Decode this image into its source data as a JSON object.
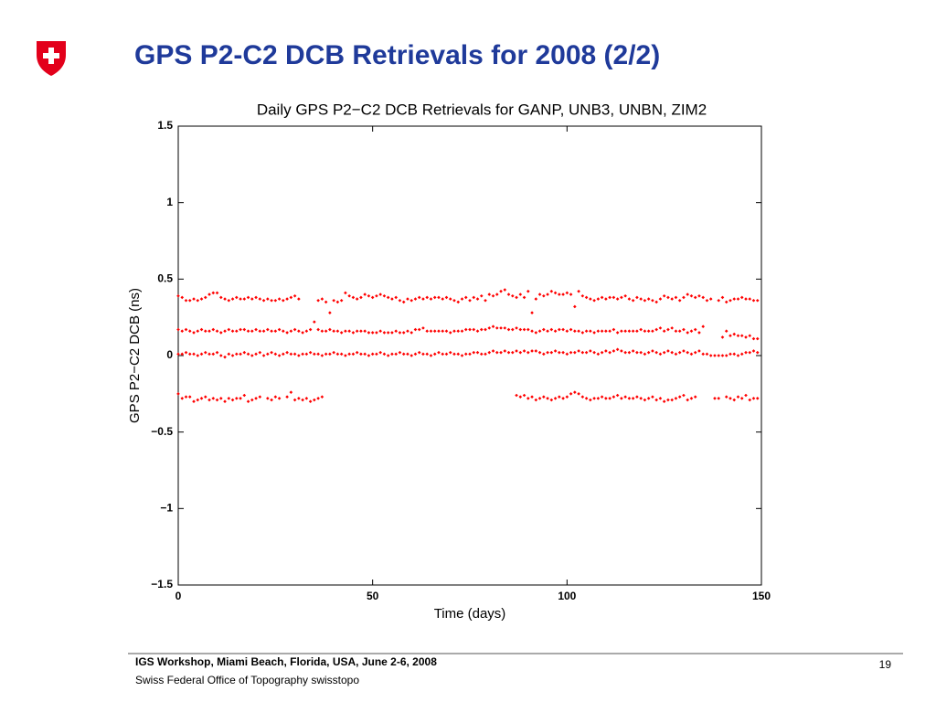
{
  "slide": {
    "title": "GPS P2-C2 DCB Retrievals for 2008 (2/2)",
    "footer_line1": "IGS Workshop, Miami Beach, Florida, USA, June 2-6, 2008",
    "footer_line2": "Swiss Federal Office of Topography swisstopo",
    "page_number": "19"
  },
  "chart_data": {
    "type": "scatter",
    "title": "Daily GPS P2−C2 DCB Retrievals for GANP, UNB3, UNBN, ZIM2",
    "xlabel": "Time (days)",
    "ylabel": "GPS P2−C2 DCB (ns)",
    "xlim": [
      0,
      150
    ],
    "xticks": [
      0,
      50,
      100,
      150
    ],
    "ylim": [
      -1.5,
      1.5
    ],
    "yticks": [
      {
        "value": -1.5,
        "label": "−1.5"
      },
      {
        "value": -1,
        "label": "−1"
      },
      {
        "value": -0.5,
        "label": "−0.5"
      },
      0,
      0.5,
      1,
      1.5
    ],
    "grid": false,
    "x": [
      0,
      1,
      2,
      3,
      4,
      5,
      6,
      7,
      8,
      9,
      10,
      11,
      12,
      13,
      14,
      15,
      16,
      17,
      18,
      19,
      20,
      21,
      22,
      23,
      24,
      25,
      26,
      27,
      28,
      29,
      30,
      31,
      32,
      33,
      34,
      35,
      36,
      37,
      38,
      39,
      40,
      41,
      42,
      43,
      44,
      45,
      46,
      47,
      48,
      49,
      50,
      51,
      52,
      53,
      54,
      55,
      56,
      57,
      58,
      59,
      60,
      61,
      62,
      63,
      64,
      65,
      66,
      67,
      68,
      69,
      70,
      71,
      72,
      73,
      74,
      75,
      76,
      77,
      78,
      79,
      80,
      81,
      82,
      83,
      84,
      85,
      86,
      87,
      88,
      89,
      90,
      91,
      92,
      93,
      94,
      95,
      96,
      97,
      98,
      99,
      100,
      101,
      102,
      103,
      104,
      105,
      106,
      107,
      108,
      109,
      110,
      111,
      112,
      113,
      114,
      115,
      116,
      117,
      118,
      119,
      120,
      121,
      122,
      123,
      124,
      125,
      126,
      127,
      128,
      129,
      130,
      131,
      132,
      133,
      134,
      135,
      136,
      137,
      138,
      139,
      140,
      141,
      142,
      143,
      144,
      145,
      146,
      147,
      148,
      149
    ],
    "series": [
      {
        "color": "#ff0000",
        "values": [
          0.39,
          0.38,
          0.36,
          0.36,
          0.37,
          0.36,
          0.37,
          0.38,
          0.4,
          0.41,
          0.41,
          0.38,
          0.37,
          0.36,
          0.37,
          0.38,
          0.37,
          0.37,
          0.38,
          0.37,
          0.38,
          0.37,
          0.36,
          0.37,
          0.36,
          0.36,
          0.37,
          0.36,
          0.37,
          0.38,
          0.39,
          0.37,
          null,
          null,
          null,
          null,
          0.36,
          0.37,
          0.35,
          0.28,
          0.36,
          0.35,
          0.36,
          0.41,
          0.39,
          0.38,
          0.37,
          0.38,
          0.4,
          0.39,
          0.38,
          0.39,
          0.4,
          0.39,
          0.38,
          0.37,
          0.38,
          0.36,
          0.35,
          0.37,
          0.36,
          0.37,
          0.38,
          0.37,
          0.38,
          0.37,
          0.38,
          0.38,
          0.37,
          0.38,
          0.37,
          0.36,
          0.35,
          0.37,
          0.38,
          0.36,
          0.38,
          0.37,
          0.39,
          0.36,
          0.4,
          0.39,
          0.4,
          0.42,
          0.43,
          0.4,
          0.39,
          0.38,
          0.4,
          0.38,
          0.42,
          0.28,
          0.37,
          0.4,
          0.39,
          0.4,
          0.42,
          0.41,
          0.4,
          0.4,
          0.41,
          0.4,
          0.32,
          0.42,
          0.39,
          0.38,
          0.37,
          0.36,
          0.37,
          0.38,
          0.37,
          0.38,
          0.38,
          0.37,
          0.38,
          0.39,
          0.37,
          0.36,
          0.38,
          0.37,
          0.36,
          0.37,
          0.36,
          0.35,
          0.37,
          0.39,
          0.38,
          0.37,
          0.38,
          0.36,
          0.38,
          0.4,
          0.39,
          0.38,
          0.39,
          0.38,
          0.36,
          0.37,
          null,
          0.36,
          0.38,
          0.35,
          0.36,
          0.37,
          0.37,
          0.38,
          0.37,
          0.37,
          0.36,
          0.36
        ]
      },
      {
        "color": "#ff0000",
        "values": [
          0.17,
          0.16,
          0.17,
          0.16,
          0.15,
          0.16,
          0.17,
          0.16,
          0.16,
          0.17,
          0.16,
          0.15,
          0.16,
          0.17,
          0.16,
          0.16,
          0.17,
          0.17,
          0.16,
          0.16,
          0.17,
          0.16,
          0.16,
          0.17,
          0.16,
          0.16,
          0.17,
          0.16,
          0.15,
          0.16,
          0.17,
          0.16,
          0.15,
          0.16,
          0.17,
          0.22,
          0.17,
          0.16,
          0.16,
          0.17,
          0.16,
          0.16,
          0.15,
          0.16,
          0.16,
          0.15,
          0.16,
          0.16,
          0.16,
          0.15,
          0.15,
          0.15,
          0.16,
          0.15,
          0.15,
          0.15,
          0.16,
          0.15,
          0.15,
          0.16,
          0.15,
          0.17,
          0.17,
          0.18,
          0.16,
          0.16,
          0.16,
          0.16,
          0.16,
          0.16,
          0.15,
          0.16,
          0.16,
          0.16,
          0.17,
          0.17,
          0.17,
          0.16,
          0.17,
          0.17,
          0.18,
          0.19,
          0.18,
          0.18,
          0.18,
          0.17,
          0.17,
          0.18,
          0.17,
          0.17,
          0.17,
          0.16,
          0.15,
          0.16,
          0.17,
          0.16,
          0.17,
          0.16,
          0.17,
          0.17,
          0.16,
          0.17,
          0.16,
          0.16,
          0.15,
          0.16,
          0.16,
          0.15,
          0.16,
          0.16,
          0.16,
          0.16,
          0.17,
          0.15,
          0.16,
          0.16,
          0.16,
          0.16,
          0.16,
          0.17,
          0.16,
          0.16,
          0.16,
          0.17,
          0.18,
          0.16,
          0.17,
          0.18,
          0.16,
          0.16,
          0.17,
          0.15,
          0.16,
          0.17,
          0.15,
          0.19,
          null,
          null,
          null,
          null,
          0.12,
          0.16,
          0.13,
          0.14,
          0.13,
          0.13,
          0.12,
          0.13,
          0.11,
          0.11
        ]
      },
      {
        "color": "#ff0000",
        "values": [
          0.01,
          0.01,
          0.02,
          0.01,
          0.01,
          0.0,
          0.01,
          0.02,
          0.01,
          0.01,
          0.02,
          0.0,
          -0.01,
          0.01,
          0.0,
          0.01,
          0.01,
          0.02,
          0.01,
          0.0,
          0.01,
          0.02,
          0.0,
          0.01,
          0.02,
          0.01,
          0.0,
          0.01,
          0.02,
          0.01,
          0.01,
          0.0,
          0.01,
          0.01,
          0.02,
          0.01,
          0.01,
          0.0,
          0.01,
          0.01,
          0.02,
          0.01,
          0.01,
          0.0,
          0.01,
          0.01,
          0.02,
          0.01,
          0.01,
          0.0,
          0.01,
          0.01,
          0.02,
          0.01,
          0.0,
          0.01,
          0.01,
          0.02,
          0.01,
          0.01,
          0.0,
          0.01,
          0.02,
          0.01,
          0.01,
          0.0,
          0.01,
          0.02,
          0.01,
          0.01,
          0.02,
          0.01,
          0.01,
          0.0,
          0.01,
          0.01,
          0.02,
          0.02,
          0.01,
          0.01,
          0.02,
          0.03,
          0.02,
          0.02,
          0.03,
          0.02,
          0.02,
          0.03,
          0.02,
          0.03,
          0.02,
          0.03,
          0.03,
          0.02,
          0.01,
          0.02,
          0.02,
          0.03,
          0.02,
          0.02,
          0.01,
          0.02,
          0.02,
          0.03,
          0.02,
          0.02,
          0.03,
          0.02,
          0.01,
          0.02,
          0.03,
          0.02,
          0.03,
          0.04,
          0.03,
          0.02,
          0.02,
          0.03,
          0.02,
          0.02,
          0.01,
          0.02,
          0.03,
          0.02,
          0.01,
          0.02,
          0.03,
          0.02,
          0.01,
          0.02,
          0.03,
          0.02,
          0.01,
          0.02,
          0.03,
          0.01,
          0.01,
          0.0,
          0.0,
          0.0,
          0.0,
          0.0,
          0.01,
          0.01,
          0.0,
          0.01,
          0.02,
          0.02,
          0.03,
          0.02
        ]
      },
      {
        "color": "#ff0000",
        "values": [
          -0.25,
          -0.28,
          -0.27,
          -0.27,
          -0.3,
          -0.29,
          -0.28,
          -0.27,
          -0.29,
          -0.28,
          -0.29,
          -0.28,
          -0.3,
          -0.28,
          -0.29,
          -0.28,
          -0.28,
          -0.26,
          -0.3,
          -0.29,
          -0.28,
          -0.27,
          null,
          -0.28,
          -0.29,
          -0.27,
          -0.28,
          null,
          -0.27,
          -0.24,
          -0.29,
          -0.28,
          -0.29,
          -0.28,
          -0.3,
          -0.29,
          -0.28,
          -0.27,
          null,
          null,
          null,
          null,
          null,
          null,
          null,
          null,
          null,
          null,
          null,
          null,
          null,
          null,
          null,
          null,
          null,
          null,
          null,
          null,
          null,
          null,
          null,
          null,
          null,
          null,
          null,
          null,
          null,
          null,
          null,
          null,
          null,
          null,
          null,
          null,
          null,
          null,
          null,
          null,
          null,
          null,
          null,
          null,
          null,
          null,
          null,
          null,
          null,
          -0.26,
          -0.27,
          -0.26,
          -0.28,
          -0.27,
          -0.29,
          -0.28,
          -0.27,
          -0.28,
          -0.29,
          -0.28,
          -0.27,
          -0.28,
          -0.27,
          -0.25,
          -0.24,
          -0.25,
          -0.27,
          -0.28,
          -0.29,
          -0.28,
          -0.28,
          -0.27,
          -0.28,
          -0.28,
          -0.27,
          -0.26,
          -0.28,
          -0.27,
          -0.28,
          -0.28,
          -0.27,
          -0.28,
          -0.29,
          -0.28,
          -0.27,
          -0.29,
          -0.28,
          -0.3,
          -0.29,
          -0.29,
          -0.28,
          -0.27,
          -0.26,
          -0.29,
          -0.28,
          -0.27,
          null,
          null,
          null,
          null,
          -0.28,
          -0.28,
          null,
          -0.27,
          -0.28,
          -0.29,
          -0.27,
          -0.28,
          -0.26,
          -0.29,
          -0.28,
          -0.28
        ]
      }
    ]
  }
}
